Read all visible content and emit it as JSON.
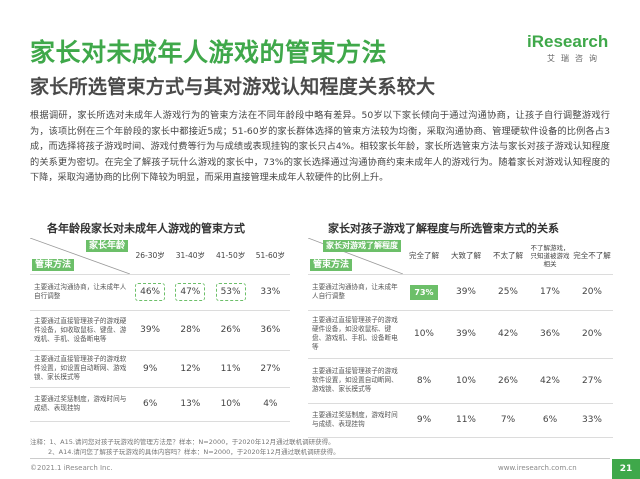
{
  "header": {
    "title": "家长对未成年人游戏的管束方法",
    "subtitle": "家长所选管束方式与其对游戏认知程度关系较大",
    "logo_main": "iResearch",
    "logo_sub": "艾瑞咨询"
  },
  "body_text": "根据调研，家长所选对未成年人游戏行为的管束方法在不同年龄段中略有差异。50岁以下家长倾向于通过沟通协商，让孩子自行调整游戏行为，该项比例在三个年龄段的家长中都接近5成；51-60岁的家长群体选择的管束方法较为均衡，采取沟通协商、管理硬软件设备的比例各占3成，而选择将孩子游戏时间、游戏付费等行为与成绩或表现挂钩的家长只占4%。相较家长年龄，家长所选管束方法与家长对孩子游戏认知程度的关系更为密切。在完全了解孩子玩什么游戏的家长中，73%的家长选择通过沟通协商约束未成年人的游戏行为。随着家长对游戏认知程度的下降，采取沟通协商的比例下降较为明显，而采用直接管理未成年人软硬件的比例上升。",
  "left_table": {
    "title": "各年龄段家长对未成年人游戏的管束方式",
    "header_top": "家长年龄",
    "header_bottom": "管束方法",
    "columns": [
      "26-30岁",
      "31-40岁",
      "41-50岁",
      "51-60岁"
    ],
    "rows": [
      {
        "label": "主要通过沟通协商，让未成年人自行调整",
        "values": [
          "46%",
          "47%",
          "53%",
          "33%"
        ],
        "highlight": [
          true,
          true,
          true,
          false
        ]
      },
      {
        "label": "主要通过直接管理孩子的游戏硬件设备，如收取鼠标、键盘、游戏机、手机、设备断电等",
        "values": [
          "39%",
          "28%",
          "26%",
          "36%"
        ],
        "highlight": [
          false,
          false,
          false,
          false
        ]
      },
      {
        "label": "主要通过直接管理孩子的游戏软件设置，如设置自动断网、游戏锁、家长模式等",
        "values": [
          "9%",
          "12%",
          "11%",
          "27%"
        ],
        "highlight": [
          false,
          false,
          false,
          false
        ]
      },
      {
        "label": "主要通过奖惩制度，游戏时间与成绩、表现挂钩",
        "values": [
          "6%",
          "13%",
          "10%",
          "4%"
        ],
        "highlight": [
          false,
          false,
          false,
          false
        ]
      }
    ]
  },
  "right_table": {
    "title": "家长对孩子游戏了解程度与所选管束方式的关系",
    "header_top": "家长对游戏了解程度",
    "header_bottom": "管束方法",
    "columns": [
      "完全了解",
      "大致了解",
      "不太了解",
      "不了解游戏，只知道被游戏相关",
      "完全不了解"
    ],
    "rows": [
      {
        "label": "主要通过沟通协商，让未成年人自行调整",
        "values": [
          "73%",
          "39%",
          "25%",
          "17%",
          "20%"
        ],
        "fill": [
          true,
          false,
          false,
          false,
          false
        ]
      },
      {
        "label": "主要通过直接管理孩子的游戏硬件设备，如没收鼠标、键盘、游戏机、手机、设备断电等",
        "values": [
          "10%",
          "39%",
          "42%",
          "36%",
          "20%"
        ],
        "fill": [
          false,
          false,
          false,
          false,
          false
        ]
      },
      {
        "label": "主要通过直接管理孩子的游戏软件设置，如设置自动断网、游戏锁、家长模式等",
        "values": [
          "8%",
          "10%",
          "26%",
          "42%",
          "27%"
        ],
        "fill": [
          false,
          false,
          false,
          false,
          false
        ]
      },
      {
        "label": "主要通过奖惩制度，游戏时间与成绩、表现挂钩",
        "values": [
          "9%",
          "11%",
          "7%",
          "6%",
          "33%"
        ],
        "fill": [
          false,
          false,
          false,
          false,
          false
        ]
      }
    ]
  },
  "notes": [
    "注释：1、A15.请问您对孩子玩游戏的管理方法是？样本：N=2000，于2020年12月通过联机调研获得。",
    "2、A14.请问您了解孩子玩游戏的具体内容吗？样本：N=2000，于2020年12月通过联机调研获得。"
  ],
  "footer": {
    "copyright": "©2021.1 iResearch Inc.",
    "website": "www.iresearch.com.cn",
    "page": "21"
  },
  "colors": {
    "accent": "#3fa84a",
    "highlight": "#6cbf69"
  }
}
